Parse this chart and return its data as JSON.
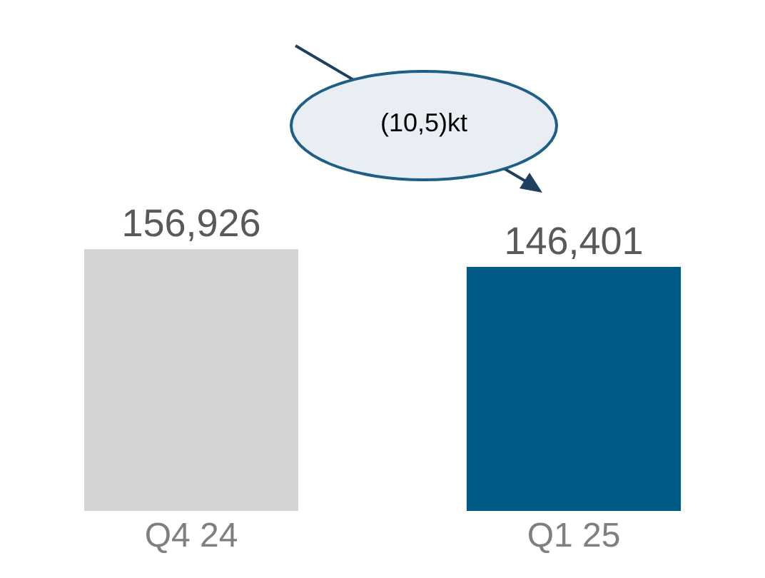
{
  "chart_data": {
    "type": "bar",
    "categories": [
      "Q4 24",
      "Q1 25"
    ],
    "values": [
      156926,
      146401
    ],
    "colors": [
      "#d4d4d4",
      "#005a87"
    ],
    "value_labels": [
      "156,926",
      "146,401"
    ],
    "tick_labels": "x",
    "grid": false,
    "annotations": [
      "(10,5)kt"
    ]
  }
}
